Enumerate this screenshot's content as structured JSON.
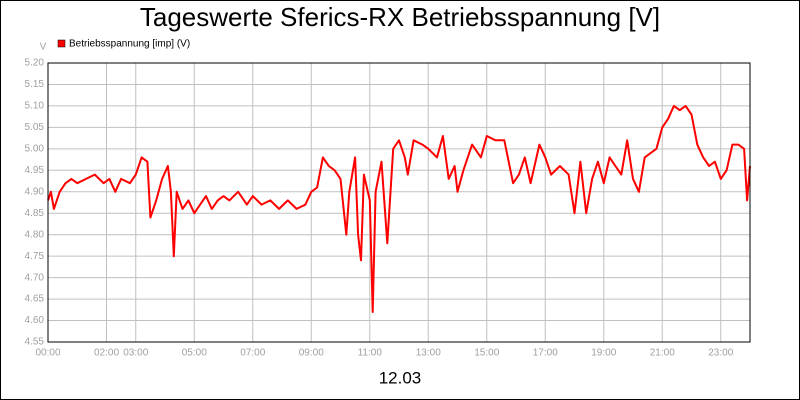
{
  "chart_data": {
    "type": "line",
    "title": "Tageswerte Sferics-RX Betriebsspannung [V]",
    "y_label": "V",
    "x_label": "12.03",
    "grid": true,
    "legend": "upper left",
    "xlim": [
      0,
      24
    ],
    "xticks": [
      {
        "value": 0,
        "label": "00:00"
      },
      {
        "value": 2,
        "label": "02:00"
      },
      {
        "value": 3,
        "label": "03:00"
      },
      {
        "value": 5,
        "label": "05:00"
      },
      {
        "value": 7,
        "label": "07:00"
      },
      {
        "value": 9,
        "label": "09:00"
      },
      {
        "value": 11,
        "label": "11:00"
      },
      {
        "value": 13,
        "label": "13:00"
      },
      {
        "value": 15,
        "label": "15:00"
      },
      {
        "value": 17,
        "label": "17:00"
      },
      {
        "value": 19,
        "label": "19:00"
      },
      {
        "value": 21,
        "label": "21:00"
      },
      {
        "value": 23,
        "label": "23:00"
      }
    ],
    "ylim": [
      4.55,
      5.2
    ],
    "yticks": [
      4.55,
      {
        "value": 4.6,
        "label": "4.60"
      },
      4.65,
      {
        "value": 4.7,
        "label": "4.70"
      },
      4.75,
      {
        "value": 4.8,
        "label": "4.80"
      },
      4.85,
      {
        "value": 4.9,
        "label": "4.90"
      },
      4.95,
      {
        "value": 5.0,
        "label": "5.00"
      },
      5.05,
      {
        "value": 5.1,
        "label": "5.10"
      },
      5.15,
      {
        "value": 5.2,
        "label": "5.20"
      }
    ],
    "x": [
      0.0,
      0.1,
      0.2,
      0.4,
      0.6,
      0.8,
      1.0,
      1.3,
      1.6,
      1.9,
      2.1,
      2.3,
      2.5,
      2.8,
      3.0,
      3.2,
      3.4,
      3.5,
      3.7,
      3.9,
      4.1,
      4.2,
      4.3,
      4.4,
      4.6,
      4.8,
      5.0,
      5.2,
      5.4,
      5.6,
      5.8,
      6.0,
      6.2,
      6.5,
      6.8,
      7.0,
      7.3,
      7.6,
      7.9,
      8.2,
      8.5,
      8.8,
      9.0,
      9.2,
      9.4,
      9.6,
      9.8,
      10.0,
      10.2,
      10.3,
      10.5,
      10.6,
      10.7,
      10.8,
      11.0,
      11.1,
      11.2,
      11.4,
      11.6,
      11.8,
      12.0,
      12.2,
      12.3,
      12.5,
      12.8,
      13.0,
      13.3,
      13.5,
      13.7,
      13.9,
      14.0,
      14.2,
      14.5,
      14.8,
      15.0,
      15.3,
      15.6,
      15.9,
      16.1,
      16.3,
      16.5,
      16.8,
      17.0,
      17.2,
      17.5,
      17.8,
      18.0,
      18.2,
      18.4,
      18.6,
      18.8,
      19.0,
      19.2,
      19.4,
      19.6,
      19.8,
      20.0,
      20.2,
      20.4,
      20.6,
      20.8,
      21.0,
      21.2,
      21.4,
      21.6,
      21.8,
      22.0,
      22.2,
      22.4,
      22.6,
      22.8,
      23.0,
      23.2,
      23.4,
      23.6,
      23.8,
      23.9,
      24.0
    ],
    "series": [
      {
        "name": "Betriebsspannung [imp] (V)",
        "color": "#ff0000",
        "values": [
          4.88,
          4.9,
          4.86,
          4.9,
          4.92,
          4.93,
          4.92,
          4.93,
          4.94,
          4.92,
          4.93,
          4.9,
          4.93,
          4.92,
          4.94,
          4.98,
          4.97,
          4.84,
          4.88,
          4.93,
          4.96,
          4.9,
          4.75,
          4.9,
          4.86,
          4.88,
          4.85,
          4.87,
          4.89,
          4.86,
          4.88,
          4.89,
          4.88,
          4.9,
          4.87,
          4.89,
          4.87,
          4.88,
          4.86,
          4.88,
          4.86,
          4.87,
          4.9,
          4.91,
          4.98,
          4.96,
          4.95,
          4.93,
          4.8,
          4.9,
          4.98,
          4.8,
          4.74,
          4.94,
          4.88,
          4.62,
          4.9,
          4.97,
          4.78,
          5.0,
          5.02,
          4.98,
          4.94,
          5.02,
          5.01,
          5.0,
          4.98,
          5.03,
          4.93,
          4.96,
          4.9,
          4.95,
          5.01,
          4.98,
          5.03,
          5.02,
          5.02,
          4.92,
          4.94,
          4.98,
          4.92,
          5.01,
          4.98,
          4.94,
          4.96,
          4.94,
          4.85,
          4.97,
          4.85,
          4.93,
          4.97,
          4.92,
          4.98,
          4.96,
          4.94,
          5.02,
          4.93,
          4.9,
          4.98,
          4.99,
          5.0,
          5.05,
          5.07,
          5.1,
          5.09,
          5.1,
          5.08,
          5.01,
          4.98,
          4.96,
          4.97,
          4.93,
          4.95,
          5.01,
          5.01,
          5.0,
          4.88,
          4.96
        ]
      }
    ]
  }
}
